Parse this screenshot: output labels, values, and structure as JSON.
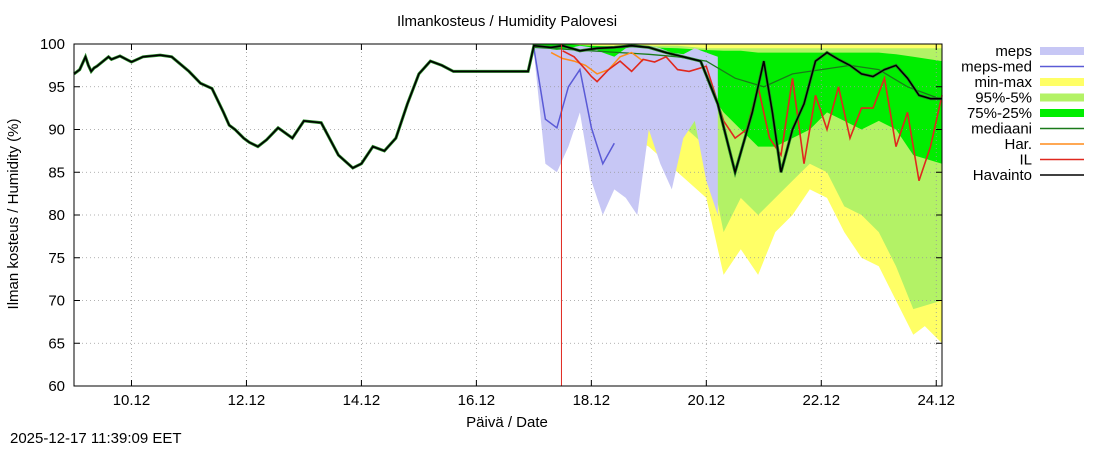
{
  "chart_data": {
    "type": "line",
    "title": "Ilmankosteus / Humidity  Palovesi",
    "xlabel": "Päivä / Date",
    "ylabel": "Ilman kosteus / Humidity (%)",
    "ylim": [
      60,
      100
    ],
    "xlim": [
      0,
      15.1
    ],
    "yticks": [
      60,
      65,
      70,
      75,
      80,
      85,
      90,
      95,
      100
    ],
    "xticks": [
      {
        "day": 1,
        "label": "10.12"
      },
      {
        "day": 3,
        "label": "12.12"
      },
      {
        "day": 5,
        "label": "14.12"
      },
      {
        "day": 7,
        "label": "16.12"
      },
      {
        "day": 9,
        "label": "18.12"
      },
      {
        "day": 11,
        "label": "20.12"
      },
      {
        "day": 13,
        "label": "22.12"
      },
      {
        "day": 15,
        "label": "24.12"
      }
    ],
    "x_unit": "days since 9.12 00:00",
    "now_marker": 8.48,
    "grid": true,
    "legend_position": "right",
    "legend": [
      "meps",
      "meps-med",
      "min-max",
      "95%-5%",
      "75%-25%",
      "mediaani",
      "Har.",
      "IL",
      "Havainto"
    ],
    "colors": {
      "meps": "#c7c7f5",
      "meps_med": "#5a5ad6",
      "min_max": "#ffff66",
      "p95_5": "#b3f266",
      "p75_25": "#00ee00",
      "mediaani": "#1a7a1a",
      "har": "#ff8c1a",
      "il": "#e0281e",
      "havainto": "#000000",
      "now": "#e0281e"
    },
    "series": {
      "havainto": {
        "x": [
          0,
          0.1,
          0.2,
          0.25,
          0.3,
          0.35,
          0.4,
          0.6,
          0.65,
          0.8,
          1.0,
          1.2,
          1.5,
          1.7,
          2.0,
          2.2,
          2.4,
          2.6,
          2.7,
          2.8,
          2.95,
          3.05,
          3.2,
          3.35,
          3.55,
          3.8,
          4.0,
          4.3,
          4.6,
          4.85,
          5.0,
          5.2,
          5.4,
          5.6,
          5.8,
          6.0,
          6.2,
          6.4,
          6.6,
          6.8,
          7.0,
          7.5,
          7.9,
          8.0,
          8.3,
          8.5,
          8.8,
          9.1,
          9.4,
          9.7,
          10.0,
          10.3,
          10.6,
          10.9,
          11.2,
          11.5,
          11.8,
          12.0,
          12.15,
          12.3,
          12.5,
          12.7,
          12.9,
          13.1,
          13.3,
          13.5,
          13.7,
          13.9,
          14.1,
          14.3,
          14.5,
          14.7,
          14.9,
          15.1
        ],
        "y": [
          96.5,
          97,
          98.5,
          97.5,
          96.8,
          97.2,
          97.4,
          98.5,
          98.2,
          98.6,
          97.9,
          98.5,
          98.7,
          98.5,
          96.8,
          95.4,
          94.8,
          92.0,
          90.5,
          90.0,
          89.0,
          88.5,
          88.0,
          88.8,
          90.2,
          89.0,
          91.0,
          90.8,
          87.0,
          85.5,
          86.0,
          88.0,
          87.5,
          89.0,
          93.0,
          96.5,
          98.0,
          97.5,
          96.8,
          96.8,
          96.8,
          96.8,
          96.8,
          99.8,
          99.6,
          99.8,
          99.2,
          99.5,
          99.6,
          99.8,
          99.6,
          99.0,
          98.5,
          98.0,
          93.0,
          85.0,
          92.0,
          98.0,
          92.0,
          85.0,
          90.0,
          93.0,
          98.0,
          99.0,
          98.2,
          97.5,
          96.5,
          96.2,
          97.0,
          97.5,
          96.0,
          94.0,
          93.6,
          93.6
        ]
      },
      "meps_med": {
        "x": [
          8.0,
          8.2,
          8.4,
          8.6,
          8.8,
          9.0,
          9.2,
          9.4
        ],
        "y": [
          99.5,
          91.2,
          90.2,
          95.0,
          97.0,
          90.2,
          86.0,
          88.4
        ]
      },
      "il": {
        "x": [
          8.5,
          8.7,
          8.9,
          9.0,
          9.1,
          9.3,
          9.5,
          9.7,
          9.9,
          10.1,
          10.3,
          10.5,
          10.7,
          11.0,
          11.3,
          11.5,
          11.7,
          11.9,
          12.1,
          12.3,
          12.5,
          12.7,
          12.9,
          13.1,
          13.3,
          13.5,
          13.7,
          13.9,
          14.1,
          14.3,
          14.5,
          14.7,
          14.9,
          15.1
        ],
        "y": [
          99.2,
          98.5,
          97.0,
          96.2,
          95.6,
          97.0,
          98.0,
          96.8,
          98.2,
          97.9,
          98.5,
          97.0,
          96.8,
          97.4,
          91.0,
          89.0,
          90.0,
          95.0,
          89.0,
          87.0,
          96.0,
          86.0,
          94.0,
          90.0,
          95.0,
          89.0,
          92.5,
          92.5,
          96.0,
          88.0,
          92.0,
          84.0,
          88.0,
          94.0
        ]
      },
      "har": {
        "x": [
          8.3,
          8.5,
          8.7,
          8.9,
          9.1,
          9.3,
          9.5,
          9.7,
          9.9
        ],
        "y": [
          99.0,
          98.3,
          98.0,
          97.5,
          96.5,
          97.0,
          98.5,
          99.0,
          98.0
        ]
      },
      "mediaani": {
        "x": [
          8.0,
          8.5,
          9.0,
          9.5,
          10.0,
          10.5,
          11.0,
          11.5,
          12.0,
          12.5,
          13.0,
          13.5,
          14.0,
          14.5,
          15.1
        ],
        "y": [
          99.6,
          99.4,
          99.2,
          99.0,
          98.8,
          98.5,
          98.0,
          96.0,
          95.0,
          96.5,
          97.0,
          97.5,
          97.0,
          95.0,
          93.5
        ]
      },
      "meps_band": {
        "x": [
          8.0,
          8.2,
          8.4,
          8.6,
          8.8,
          9.0,
          9.2,
          9.4,
          9.6,
          9.8,
          10.0,
          10.2,
          10.4,
          10.6,
          10.8,
          11.0,
          11.2
        ],
        "upper": [
          99.9,
          99.5,
          99.3,
          99.5,
          99.8,
          99.6,
          99.0,
          98.5,
          99.5,
          99.8,
          99.8,
          99.5,
          99.0,
          98.8,
          99.5,
          99.0,
          98.5
        ],
        "lower": [
          99.0,
          86.0,
          85.0,
          88.0,
          92.0,
          84.0,
          80.0,
          83.0,
          82.0,
          80.0,
          90.0,
          86.0,
          83.0,
          89.0,
          91.0,
          84.0,
          80.0
        ]
      },
      "minmax_band": {
        "x": [
          8.0,
          8.5,
          9.0,
          9.5,
          10.0,
          10.5,
          11.0,
          11.3,
          11.6,
          11.9,
          12.2,
          12.5,
          12.8,
          13.1,
          13.4,
          13.7,
          14.0,
          14.3,
          14.6,
          14.8,
          15.1
        ],
        "upper": [
          100,
          100,
          100,
          100,
          100,
          100,
          100,
          100,
          100,
          100,
          100,
          100,
          100,
          100,
          100,
          100,
          100,
          100,
          100,
          100,
          100
        ],
        "lower": [
          99.0,
          96.0,
          93.0,
          90.0,
          88.0,
          85.0,
          82.0,
          73.0,
          76.0,
          73.0,
          78.0,
          80.0,
          83.0,
          82.0,
          78.0,
          75.0,
          74.0,
          70.0,
          66.0,
          67.0,
          65.0
        ]
      },
      "p95_band": {
        "x": [
          8.0,
          8.5,
          9.0,
          9.5,
          10.0,
          10.5,
          11.0,
          11.3,
          11.6,
          11.9,
          12.2,
          12.5,
          12.8,
          13.1,
          13.4,
          13.7,
          14.0,
          14.3,
          14.6,
          15.1
        ],
        "upper": [
          100,
          100,
          99.8,
          99.8,
          99.8,
          99.8,
          99.5,
          99.5,
          99.5,
          99.5,
          99.5,
          99.5,
          99.5,
          99.5,
          99.5,
          99.5,
          99.5,
          99.5,
          99.5,
          99.5
        ],
        "lower": [
          99.5,
          98.0,
          96.0,
          94.0,
          93.0,
          91.0,
          88.0,
          78.0,
          82.0,
          80.0,
          82.0,
          84.0,
          86.0,
          85.0,
          81.0,
          80.0,
          78.0,
          74.0,
          69.0,
          70.0
        ]
      },
      "p75_band": {
        "x": [
          8.0,
          8.5,
          9.0,
          9.5,
          10.0,
          10.5,
          11.0,
          11.3,
          11.6,
          11.9,
          12.2,
          12.5,
          12.8,
          13.1,
          13.4,
          13.7,
          14.0,
          14.3,
          14.6,
          15.1
        ],
        "upper": [
          100,
          100,
          99.8,
          99.7,
          99.6,
          99.5,
          99.3,
          99.2,
          99.2,
          99.0,
          99.0,
          99.0,
          99.0,
          99.0,
          99.0,
          99.0,
          99.0,
          98.8,
          98.5,
          98.0
        ],
        "lower": [
          99.6,
          99.0,
          98.5,
          98.0,
          97.0,
          96.0,
          95.0,
          92.0,
          90.0,
          88.0,
          88.0,
          89.0,
          90.0,
          92.0,
          91.0,
          90.0,
          91.0,
          90.0,
          87.0,
          86.0
        ]
      }
    }
  },
  "footer": {
    "timestamp": "2025-12-17 11:39:09 EET"
  }
}
